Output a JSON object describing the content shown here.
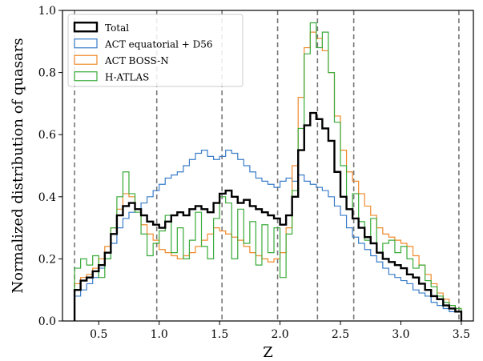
{
  "chart_data": {
    "type": "line",
    "step": true,
    "xlabel": "Z",
    "ylabel": "Normalized distribution of quasars",
    "xlim": [
      0.2,
      3.6
    ],
    "ylim": [
      0.0,
      1.0
    ],
    "xticks": [
      "0.5",
      "1.0",
      "1.5",
      "2.0",
      "2.5",
      "3.0",
      "3.5"
    ],
    "yticks": [
      "0.0",
      "0.2",
      "0.4",
      "0.6",
      "0.8",
      "1.0"
    ],
    "legend_position": "top-left",
    "vlines": [
      0.3,
      0.98,
      1.52,
      1.98,
      2.31,
      2.61,
      3.48
    ],
    "series": [
      {
        "name": "Total",
        "color": "#000000",
        "x": [
          0.3,
          0.35,
          0.4,
          0.45,
          0.5,
          0.55,
          0.6,
          0.65,
          0.7,
          0.75,
          0.8,
          0.85,
          0.9,
          0.95,
          1.0,
          1.05,
          1.1,
          1.15,
          1.2,
          1.25,
          1.3,
          1.35,
          1.4,
          1.45,
          1.5,
          1.55,
          1.6,
          1.65,
          1.7,
          1.75,
          1.8,
          1.85,
          1.9,
          1.95,
          2.0,
          2.05,
          2.1,
          2.15,
          2.2,
          2.25,
          2.3,
          2.35,
          2.4,
          2.45,
          2.5,
          2.55,
          2.6,
          2.65,
          2.7,
          2.75,
          2.8,
          2.85,
          2.9,
          2.95,
          3.0,
          3.05,
          3.1,
          3.15,
          3.2,
          3.25,
          3.3,
          3.35,
          3.4,
          3.45
        ],
        "y": [
          0.1,
          0.13,
          0.14,
          0.16,
          0.18,
          0.22,
          0.28,
          0.34,
          0.37,
          0.38,
          0.36,
          0.34,
          0.32,
          0.31,
          0.3,
          0.32,
          0.34,
          0.35,
          0.34,
          0.36,
          0.37,
          0.36,
          0.35,
          0.38,
          0.41,
          0.42,
          0.4,
          0.38,
          0.39,
          0.37,
          0.36,
          0.35,
          0.34,
          0.33,
          0.31,
          0.34,
          0.4,
          0.55,
          0.63,
          0.67,
          0.65,
          0.62,
          0.58,
          0.48,
          0.4,
          0.36,
          0.33,
          0.3,
          0.27,
          0.25,
          0.22,
          0.2,
          0.19,
          0.18,
          0.17,
          0.15,
          0.14,
          0.12,
          0.1,
          0.08,
          0.07,
          0.05,
          0.04,
          0.03
        ]
      },
      {
        "name": "ACT equatorial + D56",
        "color": "#3a7dc9",
        "x": [
          0.3,
          0.35,
          0.4,
          0.45,
          0.5,
          0.55,
          0.6,
          0.65,
          0.7,
          0.75,
          0.8,
          0.85,
          0.9,
          0.95,
          1.0,
          1.05,
          1.1,
          1.15,
          1.2,
          1.25,
          1.3,
          1.35,
          1.4,
          1.45,
          1.5,
          1.55,
          1.6,
          1.65,
          1.7,
          1.75,
          1.8,
          1.85,
          1.9,
          1.95,
          2.0,
          2.05,
          2.1,
          2.15,
          2.2,
          2.25,
          2.3,
          2.35,
          2.4,
          2.45,
          2.5,
          2.55,
          2.6,
          2.65,
          2.7,
          2.75,
          2.8,
          2.85,
          2.9,
          2.95,
          3.0,
          3.05,
          3.1,
          3.15,
          3.2,
          3.25,
          3.3,
          3.35,
          3.4,
          3.45
        ],
        "y": [
          0.08,
          0.1,
          0.12,
          0.14,
          0.17,
          0.2,
          0.25,
          0.3,
          0.33,
          0.35,
          0.36,
          0.38,
          0.4,
          0.42,
          0.44,
          0.46,
          0.47,
          0.48,
          0.5,
          0.52,
          0.54,
          0.55,
          0.53,
          0.52,
          0.53,
          0.55,
          0.54,
          0.52,
          0.5,
          0.48,
          0.46,
          0.45,
          0.44,
          0.43,
          0.45,
          0.46,
          0.45,
          0.47,
          0.45,
          0.44,
          0.43,
          0.42,
          0.4,
          0.37,
          0.34,
          0.3,
          0.27,
          0.25,
          0.23,
          0.21,
          0.19,
          0.17,
          0.15,
          0.14,
          0.13,
          0.12,
          0.1,
          0.09,
          0.08,
          0.06,
          0.05,
          0.04,
          0.03,
          0.03
        ]
      },
      {
        "name": "ACT BOSS-N",
        "color": "#f08a2c",
        "x": [
          0.3,
          0.35,
          0.4,
          0.45,
          0.5,
          0.55,
          0.6,
          0.65,
          0.7,
          0.75,
          0.8,
          0.85,
          0.9,
          0.95,
          1.0,
          1.05,
          1.1,
          1.15,
          1.2,
          1.25,
          1.3,
          1.35,
          1.4,
          1.45,
          1.5,
          1.55,
          1.6,
          1.65,
          1.7,
          1.75,
          1.8,
          1.85,
          1.9,
          1.95,
          2.0,
          2.05,
          2.1,
          2.15,
          2.2,
          2.25,
          2.3,
          2.35,
          2.4,
          2.45,
          2.5,
          2.55,
          2.6,
          2.65,
          2.7,
          2.75,
          2.8,
          2.85,
          2.9,
          2.95,
          3.0,
          3.05,
          3.1,
          3.15,
          3.2,
          3.25,
          3.3,
          3.35,
          3.4,
          3.45
        ],
        "y": [
          0.12,
          0.14,
          0.15,
          0.17,
          0.2,
          0.24,
          0.3,
          0.36,
          0.41,
          0.4,
          0.36,
          0.31,
          0.28,
          0.26,
          0.23,
          0.22,
          0.21,
          0.2,
          0.21,
          0.22,
          0.24,
          0.26,
          0.28,
          0.3,
          0.29,
          0.28,
          0.27,
          0.26,
          0.24,
          0.22,
          0.21,
          0.2,
          0.19,
          0.2,
          0.22,
          0.3,
          0.5,
          0.72,
          0.88,
          0.93,
          0.91,
          0.87,
          0.8,
          0.66,
          0.55,
          0.48,
          0.45,
          0.41,
          0.37,
          0.34,
          0.3,
          0.28,
          0.27,
          0.26,
          0.25,
          0.24,
          0.21,
          0.18,
          0.15,
          0.12,
          0.09,
          0.07,
          0.05,
          0.04
        ]
      },
      {
        "name": "H-ATLAS",
        "color": "#3aab3a",
        "x": [
          0.3,
          0.35,
          0.4,
          0.45,
          0.5,
          0.55,
          0.6,
          0.65,
          0.7,
          0.75,
          0.8,
          0.85,
          0.9,
          0.95,
          1.0,
          1.05,
          1.1,
          1.15,
          1.2,
          1.25,
          1.3,
          1.35,
          1.4,
          1.45,
          1.5,
          1.55,
          1.6,
          1.65,
          1.7,
          1.75,
          1.8,
          1.85,
          1.9,
          1.95,
          2.0,
          2.05,
          2.1,
          2.15,
          2.2,
          2.25,
          2.3,
          2.35,
          2.4,
          2.45,
          2.5,
          2.55,
          2.6,
          2.65,
          2.7,
          2.75,
          2.8,
          2.85,
          2.9,
          2.95,
          3.0,
          3.05,
          3.1,
          3.15,
          3.2,
          3.25,
          3.3,
          3.35,
          3.4,
          3.45
        ],
        "y": [
          0.17,
          0.2,
          0.18,
          0.21,
          0.14,
          0.2,
          0.3,
          0.4,
          0.48,
          0.41,
          0.35,
          0.28,
          0.21,
          0.25,
          0.29,
          0.34,
          0.22,
          0.3,
          0.2,
          0.26,
          0.35,
          0.24,
          0.2,
          0.33,
          0.4,
          0.38,
          0.2,
          0.36,
          0.25,
          0.32,
          0.18,
          0.31,
          0.22,
          0.3,
          0.14,
          0.28,
          0.42,
          0.62,
          0.86,
          0.96,
          0.88,
          0.93,
          0.8,
          0.64,
          0.5,
          0.36,
          0.41,
          0.32,
          0.26,
          0.33,
          0.22,
          0.25,
          0.26,
          0.22,
          0.24,
          0.2,
          0.17,
          0.18,
          0.13,
          0.11,
          0.08,
          0.06,
          0.05,
          0.04
        ]
      }
    ]
  }
}
